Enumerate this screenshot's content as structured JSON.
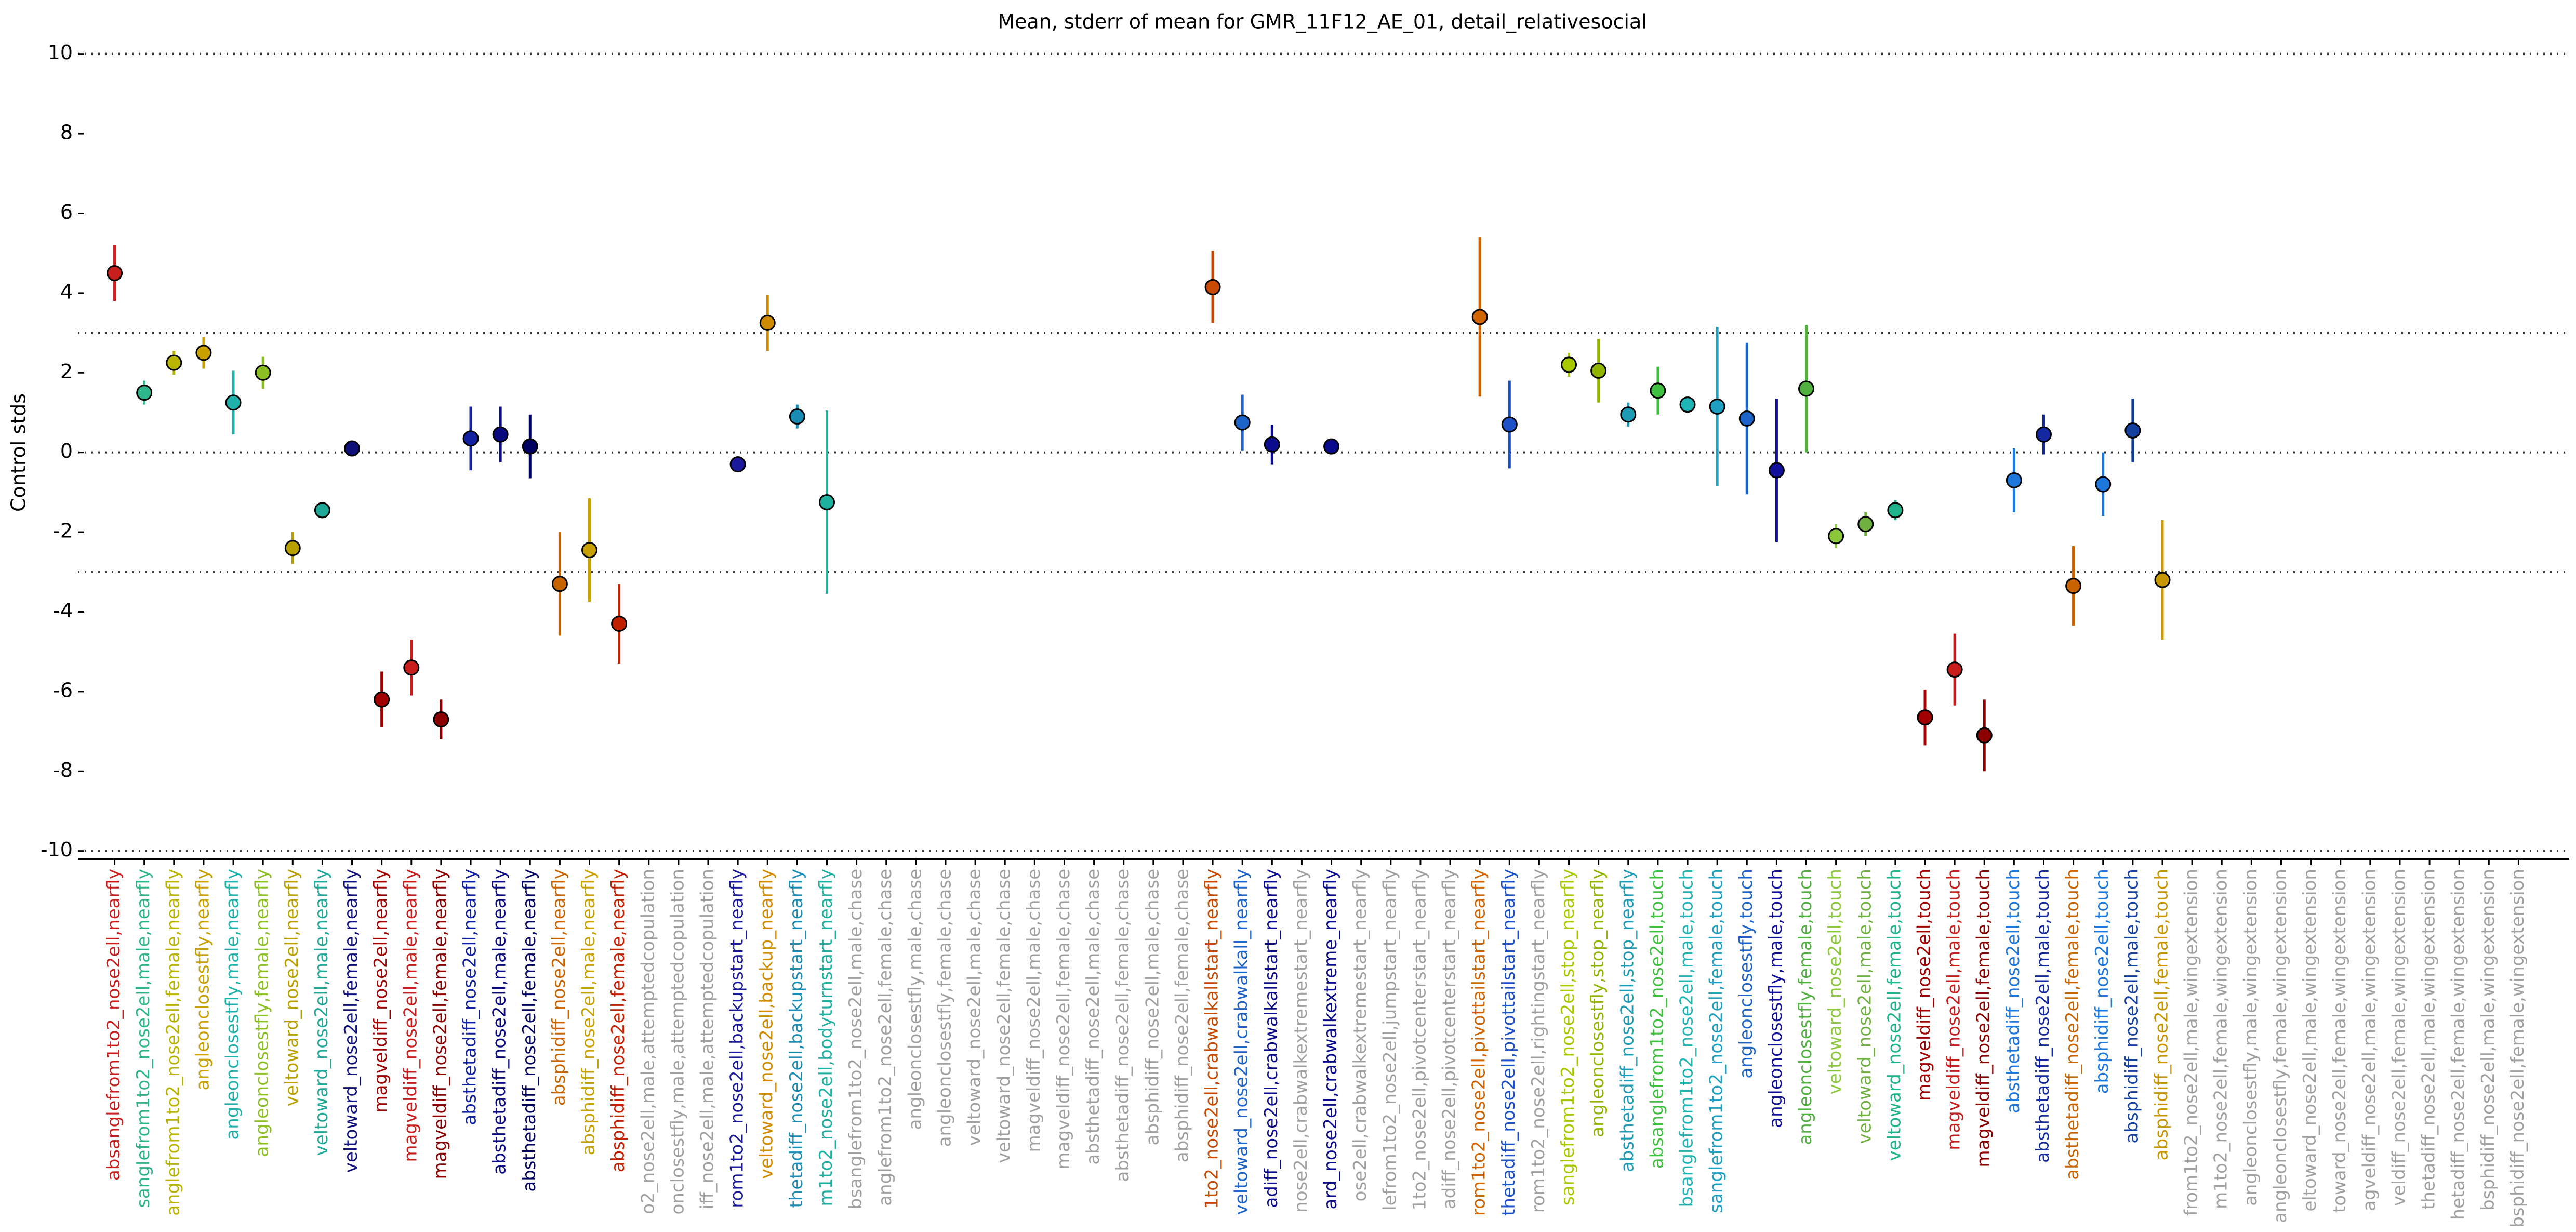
{
  "chart_data": {
    "type": "errorbar",
    "title": "Mean, stderr of mean for GMR_11F12_AE_01, detail_relativesocial",
    "y_label": "Control stds",
    "ylim": [
      -10.2,
      10.4
    ],
    "yticks": [
      -10,
      -8,
      -6,
      -4,
      -2,
      0,
      2,
      4,
      6,
      8,
      10
    ],
    "hlines": [
      10,
      3,
      0,
      -3,
      -10
    ],
    "categories": [
      "absanglefrom1to2_nose2ell,nearfly",
      "sanglefrom1to2_nose2ell,male,nearfly",
      "anglefrom1to2_nose2ell,female,nearfly",
      "angleonclosestfly,nearfly",
      "angleonclosestfly,male,nearfly",
      "angleonclosestfly,female,nearfly",
      "veltoward_nose2ell,nearfly",
      "veltoward_nose2ell,male,nearfly",
      "veltoward_nose2ell,female,nearfly",
      "magveldiff_nose2ell,nearfly",
      "magveldiff_nose2ell,male,nearfly",
      "magveldiff_nose2ell,female,nearfly",
      "absthetadiff_nose2ell,nearfly",
      "absthetadiff_nose2ell,male,nearfly",
      "absthetadiff_nose2ell,female,nearfly",
      "absphidiff_nose2ell,nearfly",
      "absphidiff_nose2ell,male,nearfly",
      "absphidiff_nose2ell,female,nearfly",
      "o2_nose2ell,male,attemptedcopulation",
      "onclosestfly,male,attemptedcopulation",
      "iff_nose2ell,male,attemptedcopulation",
      "rom1to2_nose2ell,backupstart_nearfly",
      "veltoward_nose2ell,backup_nearfly",
      "thetadiff_nose2ell,backupstart_nearfly",
      "m1to2_nose2ell,bodyturnstart_nearfly",
      "bsanglefrom1to2_nose2ell,male,chase",
      "anglefrom1to2_nose2ell,female,chase",
      "angleonclosestfly,male,chase",
      "angleonclosestfly,female,chase",
      "veltoward_nose2ell,male,chase",
      "veltoward_nose2ell,female,chase",
      "magveldiff_nose2ell,male,chase",
      "magveldiff_nose2ell,female,chase",
      "absthetadiff_nose2ell,male,chase",
      "absthetadiff_nose2ell,female,chase",
      "absphidiff_nose2ell,male,chase",
      "absphidiff_nose2ell,female,chase",
      "1to2_nose2ell,crabwalkallstart_nearfly",
      "veltoward_nose2ell,crabwalkall_nearfly",
      "adiff_nose2ell,crabwalkallstart_nearfly",
      "nose2ell,crabwalkextremestart_nearfly",
      "ard_nose2ell,crabwalkextreme_nearfly",
      "ose2ell,crabwalkextremestart_nearfly",
      "lefrom1to2_nose2ell,jumpstart_nearfly",
      "1to2_nose2ell,pivotcenterstart_nearfly",
      "adiff_nose2ell,pivotcenterstart_nearfly",
      "rom1to2_nose2ell,pivottailstart_nearfly",
      "thetadiff_nose2ell,pivottailstart_nearfly",
      "rom1to2_nose2ell,rightingstart_nearfly",
      "sanglefrom1to2_nose2ell,stop_nearfly",
      "angleonclosestfly,stop_nearfly",
      "absthetadiff_nose2ell,stop_nearfly",
      "absanglefrom1to2_nose2ell,touch",
      "bsanglefrom1to2_nose2ell,male,touch",
      "sanglefrom1to2_nose2ell,female,touch",
      "angleonclosestfly,touch",
      "angleonclosestfly,male,touch",
      "angleonclosestfly,female,touch",
      "veltoward_nose2ell,touch",
      "veltoward_nose2ell,male,touch",
      "veltoward_nose2ell,female,touch",
      "magveldiff_nose2ell,touch",
      "magveldiff_nose2ell,male,touch",
      "magveldiff_nose2ell,female,touch",
      "absthetadiff_nose2ell,touch",
      "absthetadiff_nose2ell,male,touch",
      "absthetadiff_nose2ell,female,touch",
      "absphidiff_nose2ell,touch",
      "absphidiff_nose2ell,male,touch",
      "absphidiff_nose2ell,female,touch",
      "from1to2_nose2ell,male,wingextension",
      "m1to2_nose2ell,female,wingextension",
      "angleonclosestfly,male,wingextension",
      "angleonclosestfly,female,wingextension",
      "eltoward_nose2ell,male,wingextension",
      "toward_nose2ell,female,wingextension",
      "agveldiff_nose2ell,male,wingextension",
      "veldiff_nose2ell,female,wingextension",
      "thetadiff_nose2ell,male,wingextension",
      "hetadiff_nose2ell,female,wingextension",
      "bsphidiff_nose2ell,male,wingextension",
      "bsphidiff_nose2ell,female,wingextension"
    ],
    "values": [
      4.5,
      1.5,
      2.25,
      2.5,
      1.25,
      2.0,
      -2.4,
      -1.45,
      0.1,
      -6.2,
      -5.4,
      -6.7,
      0.35,
      0.45,
      0.15,
      -3.3,
      -2.45,
      -4.3,
      null,
      null,
      null,
      -0.3,
      3.25,
      0.9,
      -1.25,
      null,
      null,
      null,
      null,
      null,
      null,
      null,
      null,
      null,
      null,
      null,
      null,
      4.15,
      0.75,
      0.2,
      null,
      0.15,
      null,
      null,
      null,
      null,
      3.4,
      0.7,
      null,
      2.2,
      2.05,
      0.95,
      1.55,
      1.2,
      1.15,
      0.85,
      -0.45,
      1.6,
      -2.1,
      -1.8,
      -1.45,
      -6.65,
      -5.45,
      -7.1,
      -0.7,
      0.45,
      -3.35,
      -0.8,
      0.55,
      -3.2,
      null,
      null,
      null,
      null,
      null,
      null,
      null,
      null,
      null,
      null,
      null,
      null
    ],
    "errors": [
      0.7,
      0.3,
      0.3,
      0.4,
      0.8,
      0.4,
      0.4,
      0.2,
      0.1,
      0.7,
      0.7,
      0.5,
      0.8,
      0.7,
      0.8,
      1.3,
      1.3,
      1.0,
      null,
      null,
      null,
      0.2,
      0.7,
      0.3,
      2.3,
      null,
      null,
      null,
      null,
      null,
      null,
      null,
      null,
      null,
      null,
      null,
      null,
      0.9,
      0.7,
      0.5,
      null,
      0.05,
      null,
      null,
      null,
      null,
      2.0,
      1.1,
      null,
      0.3,
      0.8,
      0.3,
      0.6,
      0.2,
      2.0,
      1.9,
      1.8,
      1.6,
      0.3,
      0.3,
      0.25,
      0.7,
      0.9,
      0.9,
      0.8,
      0.5,
      1.0,
      0.8,
      0.8,
      1.5,
      null,
      null,
      null,
      null,
      null,
      null,
      null,
      null,
      null,
      null,
      null,
      null
    ],
    "colors": [
      "#c81e1e",
      "#2fb58a",
      "#b8b400",
      "#c8a000",
      "#20b2aa",
      "#8cbf26",
      "#b8a000",
      "#20a898",
      "#10107a",
      "#a00000",
      "#c81e1e",
      "#8b0000",
      "#1020a0",
      "#0a0a80",
      "#000060",
      "#c86400",
      "#c8a000",
      "#c02000",
      "#a0a0a0",
      "#a0a0a0",
      "#a0a0a0",
      "#1a1a9a",
      "#d08c00",
      "#1a8cb4",
      "#20b0a0",
      "#a0a0a0",
      "#a0a0a0",
      "#a0a0a0",
      "#a0a0a0",
      "#a0a0a0",
      "#a0a0a0",
      "#a0a0a0",
      "#a0a0a0",
      "#a0a0a0",
      "#a0a0a0",
      "#a0a0a0",
      "#a0a0a0",
      "#c84a00",
      "#1e64c8",
      "#0a0a8c",
      "#a0a0a0",
      "#0a0a8c",
      "#a0a0a0",
      "#a0a0a0",
      "#a0a0a0",
      "#a0a0a0",
      "#d06400",
      "#1e50c8",
      "#a0a0a0",
      "#a8c800",
      "#90b400",
      "#1e9ab4",
      "#40c040",
      "#20b4b4",
      "#20a0c0",
      "#1e64c8",
      "#10109a",
      "#50b040",
      "#8cc83c",
      "#70b040",
      "#20b48c",
      "#a00000",
      "#c81e1e",
      "#8b0000",
      "#1e78dc",
      "#1428a0",
      "#c86400",
      "#1e78dc",
      "#1440a0",
      "#c89600",
      "#a0a0a0",
      "#a0a0a0",
      "#a0a0a0",
      "#a0a0a0",
      "#a0a0a0",
      "#a0a0a0",
      "#a0a0a0",
      "#a0a0a0",
      "#a0a0a0",
      "#a0a0a0",
      "#a0a0a0",
      "#a0a0a0"
    ]
  }
}
